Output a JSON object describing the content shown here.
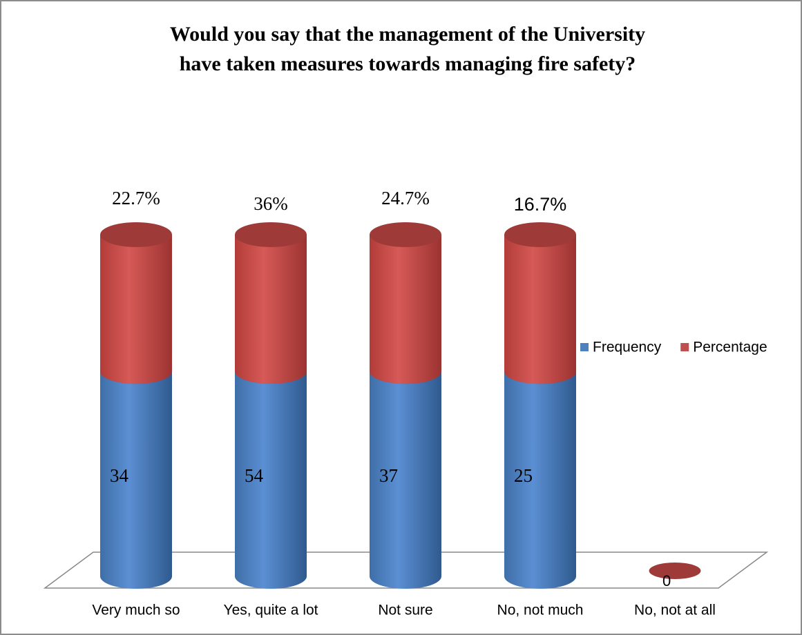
{
  "chart_data": {
    "type": "bar",
    "stacking": "percent",
    "shape": "cylinder",
    "title": [
      "Would you say that the management of the University",
      "have taken measures towards managing fire safety?"
    ],
    "categories": [
      "Very much so",
      "Yes, quite a lot",
      "Not sure",
      "No, not much",
      "No, not at all"
    ],
    "series": [
      {
        "name": "Frequency",
        "color": "#4f81bd",
        "values": [
          34,
          54,
          37,
          25,
          0
        ]
      },
      {
        "name": "Percentage",
        "color": "#c0504d",
        "values": [
          22.7,
          36,
          24.7,
          16.7,
          0
        ],
        "value_labels": [
          "22.7%",
          "36%",
          "24.7%",
          "16.7%",
          null
        ]
      }
    ],
    "legend": "right"
  }
}
